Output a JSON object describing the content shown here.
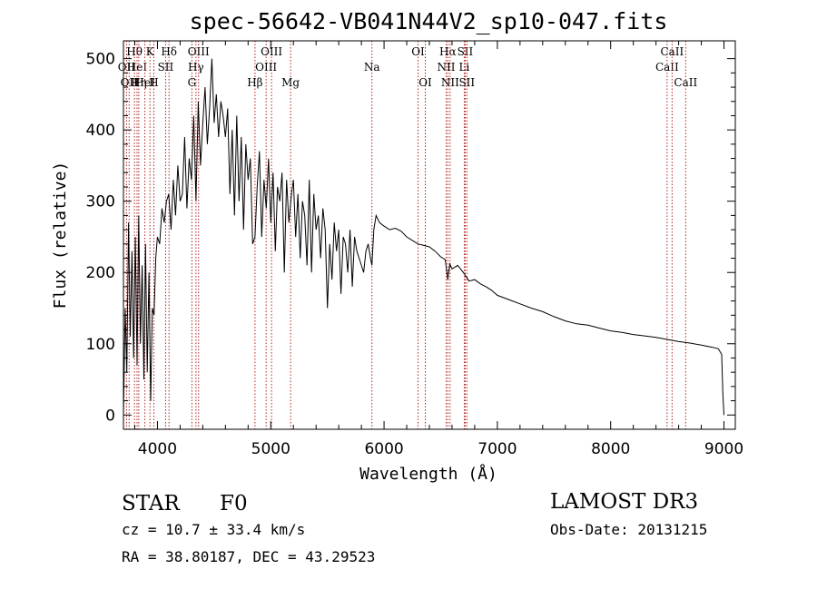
{
  "chart_data": {
    "type": "line",
    "title": "spec-56642-VB041N44V2_sp10-047.fits",
    "xlabel": "Wavelength (Å)",
    "ylabel": "Flux (relative)",
    "xlim": [
      3700,
      9100
    ],
    "ylim": [
      -20,
      525
    ],
    "xticks": [
      4000,
      5000,
      6000,
      7000,
      8000,
      9000
    ],
    "yticks": [
      0,
      100,
      200,
      300,
      400,
      500
    ],
    "series": [
      {
        "name": "flux",
        "x": [
          3700,
          3715,
          3730,
          3745,
          3760,
          3775,
          3790,
          3805,
          3820,
          3835,
          3850,
          3865,
          3880,
          3895,
          3910,
          3925,
          3940,
          3955,
          3970,
          3985,
          4000,
          4020,
          4040,
          4060,
          4080,
          4100,
          4120,
          4140,
          4160,
          4180,
          4200,
          4220,
          4240,
          4260,
          4280,
          4300,
          4320,
          4340,
          4360,
          4380,
          4400,
          4420,
          4440,
          4460,
          4480,
          4500,
          4520,
          4540,
          4560,
          4580,
          4600,
          4620,
          4640,
          4660,
          4680,
          4700,
          4720,
          4740,
          4760,
          4780,
          4800,
          4820,
          4840,
          4861,
          4880,
          4900,
          4920,
          4940,
          4960,
          4980,
          5000,
          5020,
          5040,
          5060,
          5080,
          5100,
          5120,
          5140,
          5160,
          5183,
          5200,
          5220,
          5240,
          5260,
          5280,
          5300,
          5320,
          5340,
          5360,
          5380,
          5400,
          5420,
          5440,
          5460,
          5480,
          5500,
          5520,
          5540,
          5560,
          5580,
          5600,
          5620,
          5640,
          5660,
          5680,
          5700,
          5720,
          5740,
          5760,
          5780,
          5800,
          5820,
          5840,
          5860,
          5880,
          5893,
          5910,
          5930,
          5960,
          6000,
          6050,
          6100,
          6150,
          6200,
          6250,
          6300,
          6350,
          6400,
          6450,
          6500,
          6540,
          6563,
          6580,
          6600,
          6650,
          6700,
          6750,
          6800,
          6850,
          6900,
          6950,
          7000,
          7100,
          7200,
          7300,
          7400,
          7500,
          7600,
          7700,
          7800,
          7900,
          8000,
          8100,
          8200,
          8300,
          8400,
          8500,
          8600,
          8700,
          8800,
          8900,
          8950,
          8980,
          8990,
          9000
        ],
        "y": [
          0,
          150,
          60,
          270,
          110,
          230,
          80,
          250,
          70,
          280,
          100,
          210,
          50,
          240,
          60,
          200,
          20,
          150,
          140,
          220,
          250,
          240,
          290,
          270,
          300,
          310,
          260,
          330,
          280,
          350,
          300,
          310,
          390,
          290,
          360,
          330,
          420,
          300,
          440,
          350,
          410,
          460,
          380,
          430,
          500,
          410,
          450,
          390,
          440,
          420,
          390,
          430,
          310,
          400,
          280,
          420,
          300,
          390,
          260,
          380,
          330,
          360,
          240,
          250,
          320,
          370,
          250,
          330,
          290,
          360,
          270,
          340,
          230,
          320,
          300,
          340,
          200,
          330,
          270,
          310,
          330,
          250,
          310,
          220,
          300,
          280,
          210,
          330,
          200,
          310,
          260,
          280,
          220,
          290,
          260,
          150,
          240,
          190,
          270,
          230,
          260,
          170,
          250,
          240,
          200,
          260,
          180,
          250,
          230,
          220,
          210,
          200,
          230,
          240,
          220,
          210,
          260,
          280,
          270,
          265,
          260,
          262,
          258,
          250,
          245,
          240,
          238,
          236,
          230,
          222,
          218,
          190,
          212,
          205,
          210,
          200,
          188,
          190,
          184,
          180,
          175,
          168,
          162,
          156,
          150,
          145,
          138,
          132,
          128,
          126,
          122,
          118,
          116,
          113,
          111,
          109,
          106,
          103,
          101,
          98,
          95,
          93,
          85,
          30,
          0
        ]
      }
    ],
    "reference_lines": [
      {
        "wavelength": 3727,
        "label": "OII",
        "row": 2
      },
      {
        "wavelength": 3750,
        "label": "OII",
        "row": 3
      },
      {
        "wavelength": 3797,
        "label": "Hθ",
        "row": 1
      },
      {
        "wavelength": 3820,
        "label": "HeI",
        "row": 2
      },
      {
        "wavelength": 3835,
        "label": "Hη",
        "row": 3
      },
      {
        "wavelength": 3889,
        "label": "HeI",
        "row": 3
      },
      {
        "wavelength": 3934,
        "label": "K",
        "row": 1
      },
      {
        "wavelength": 3968,
        "label": "H",
        "row": 3
      },
      {
        "wavelength": 4072,
        "label": "SII",
        "row": 2
      },
      {
        "wavelength": 4102,
        "label": "Hδ",
        "row": 1
      },
      {
        "wavelength": 4304,
        "label": "G",
        "row": 3
      },
      {
        "wavelength": 4340,
        "label": "Hγ",
        "row": 2
      },
      {
        "wavelength": 4363,
        "label": "OIII",
        "row": 1
      },
      {
        "wavelength": 4861,
        "label": "Hβ",
        "row": 3
      },
      {
        "wavelength": 4959,
        "label": "OIII",
        "row": 2
      },
      {
        "wavelength": 5007,
        "label": "OIII",
        "row": 1
      },
      {
        "wavelength": 5175,
        "label": "Mg",
        "row": 3
      },
      {
        "wavelength": 5893,
        "label": "Na",
        "row": 2
      },
      {
        "wavelength": 6300,
        "label": "OI",
        "row": 1
      },
      {
        "wavelength": 6364,
        "label": "OI",
        "row": 3
      },
      {
        "wavelength": 6548,
        "label": "NII",
        "row": 2
      },
      {
        "wavelength": 6563,
        "label": "Hα",
        "row": 1
      },
      {
        "wavelength": 6583,
        "label": "NII",
        "row": 3
      },
      {
        "wavelength": 6708,
        "label": "Li",
        "row": 2
      },
      {
        "wavelength": 6716,
        "label": "SII",
        "row": 1
      },
      {
        "wavelength": 6731,
        "label": "SII",
        "row": 3
      },
      {
        "wavelength": 8498,
        "label": "CaII",
        "row": 2
      },
      {
        "wavelength": 8542,
        "label": "CaII",
        "row": 1
      },
      {
        "wavelength": 8662,
        "label": "CaII",
        "row": 3
      }
    ],
    "colors": {
      "flux": "#000000",
      "reference_lines": "#b22222",
      "axes": "#000000",
      "background": "#ffffff"
    }
  },
  "footer": {
    "object_class": "STAR",
    "subclass": "F0",
    "redshift": "cz = 10.7 ± 33.4 km/s",
    "coordinates": "RA =  38.80187, DEC =  43.29523",
    "survey": "LAMOST DR3",
    "obs_date": "Obs-Date: 20131215"
  }
}
